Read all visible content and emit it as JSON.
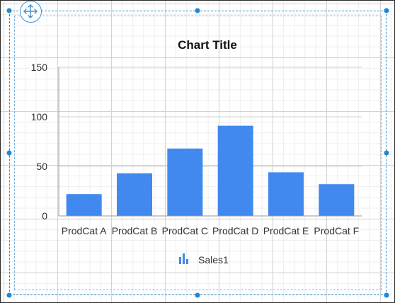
{
  "designer": {
    "move_handle_icon": "move-arrows-icon",
    "selection_color": "#1e88d6"
  },
  "chart_data": {
    "type": "bar",
    "title": "Chart Title",
    "categories": [
      "ProdCat A",
      "ProdCat B",
      "ProdCat C",
      "ProdCat D",
      "ProdCat E",
      "ProdCat F"
    ],
    "series": [
      {
        "name": "Sales1",
        "values": [
          22,
          43,
          68,
          91,
          44,
          32
        ],
        "color": "#4189ef"
      }
    ],
    "ylim": [
      0,
      150
    ],
    "yticks": [
      "0",
      "50",
      "100",
      "150"
    ],
    "grid": true,
    "legend": {
      "position": "bottom",
      "icon": "bar-chart-icon"
    }
  }
}
